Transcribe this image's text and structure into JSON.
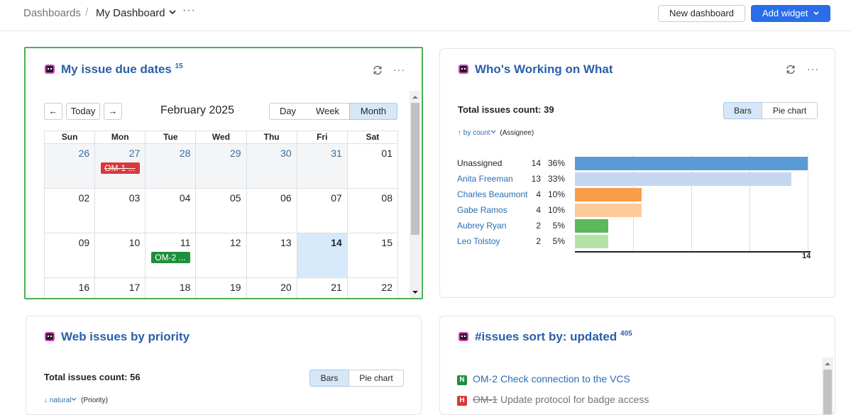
{
  "header": {
    "breadcrumb_root": "Dashboards",
    "breadcrumb_sep": "/",
    "breadcrumb_current": "My Dashboard",
    "more": "···",
    "new_dashboard": "New dashboard",
    "add_widget": "Add widget"
  },
  "due_dates": {
    "title": "My issue due dates",
    "count": "15",
    "nav_prev": "←",
    "nav_today": "Today",
    "nav_next": "→",
    "month_title": "February 2025",
    "views": [
      "Day",
      "Week",
      "Month"
    ],
    "selected_view": "Month",
    "weekdays": [
      "Sun",
      "Mon",
      "Tue",
      "Wed",
      "Thu",
      "Fri",
      "Sat"
    ],
    "weeks": [
      [
        {
          "d": "26",
          "other": true
        },
        {
          "d": "27",
          "other": true,
          "evt": {
            "label": "OM-1 ...",
            "style": "red"
          }
        },
        {
          "d": "28",
          "other": true
        },
        {
          "d": "29",
          "other": true
        },
        {
          "d": "30",
          "other": true
        },
        {
          "d": "31",
          "other": true
        },
        {
          "d": "01"
        }
      ],
      [
        {
          "d": "02"
        },
        {
          "d": "03"
        },
        {
          "d": "04"
        },
        {
          "d": "05"
        },
        {
          "d": "06"
        },
        {
          "d": "07"
        },
        {
          "d": "08"
        }
      ],
      [
        {
          "d": "09"
        },
        {
          "d": "10"
        },
        {
          "d": "11",
          "evt": {
            "label": "OM-2 ...",
            "style": "green"
          }
        },
        {
          "d": "12"
        },
        {
          "d": "13"
        },
        {
          "d": "14",
          "today": true
        },
        {
          "d": "15"
        }
      ],
      [
        {
          "d": "16"
        },
        {
          "d": "17"
        },
        {
          "d": "18"
        },
        {
          "d": "19"
        },
        {
          "d": "20"
        },
        {
          "d": "21"
        },
        {
          "d": "22"
        }
      ]
    ]
  },
  "working": {
    "title": "Who's Working on What",
    "total_label": "Total issues count: 39",
    "sort_link": "↑ by count",
    "sort_field": "(Assignee)",
    "toggle": [
      "Bars",
      "Pie chart"
    ],
    "selected_toggle": "Bars",
    "axis_max_label": "14",
    "chart_data": {
      "type": "bar",
      "orientation": "horizontal",
      "categories": [
        "Unassigned",
        "Anita Freeman",
        "Charles Beaumont",
        "Gabe Ramos",
        "Aubrey Ryan",
        "Leo Tolstoy"
      ],
      "values": [
        14,
        13,
        4,
        4,
        2,
        2
      ],
      "percents": [
        "36%",
        "33%",
        "10%",
        "10%",
        "5%",
        "5%"
      ],
      "colors": [
        "#5b9bd5",
        "#c5d7f0",
        "#fb9d4b",
        "#fdcb9a",
        "#5cb85c",
        "#b4e3a7"
      ],
      "xlim": [
        0,
        14
      ]
    }
  },
  "priority": {
    "title": "Web issues by priority",
    "total_label": "Total issues count: 56",
    "sort_link": "↓ natural",
    "sort_field": "(Priority)",
    "toggle": [
      "Bars",
      "Pie chart"
    ],
    "selected_toggle": "Bars"
  },
  "issues": {
    "title": "#issues sort by: updated",
    "count": "405",
    "rows": [
      {
        "badge": "N",
        "badge_color": "#1f8f3c",
        "id": "OM-2",
        "summary": "Check connection to the VCS",
        "resolved": false
      },
      {
        "badge": "H",
        "badge_color": "#d9383a",
        "id": "OM-1",
        "summary": "Update protocol for badge access",
        "resolved": true
      }
    ]
  }
}
